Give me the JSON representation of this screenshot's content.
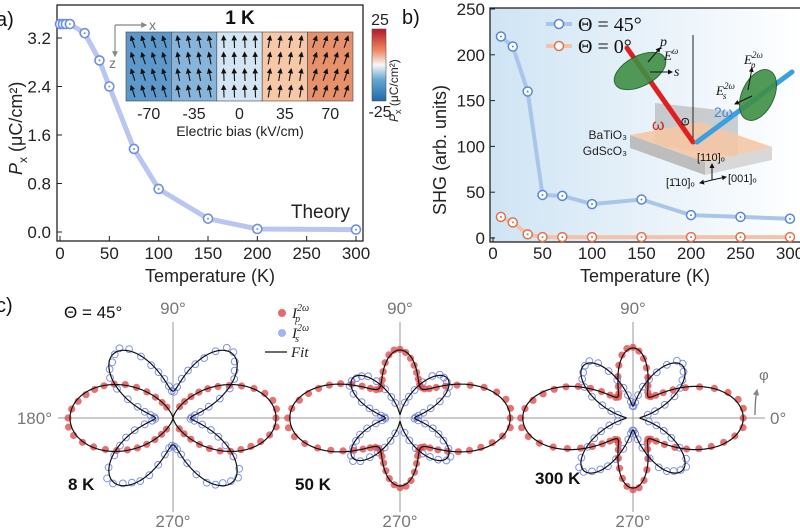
{
  "panel_labels": {
    "a": "a)",
    "b": "b)",
    "c": "c)"
  },
  "colors": {
    "theory": "#6f8fe6",
    "theory_line": "#b9c6f2",
    "theta45": "#5b86d8",
    "theta45_line": "#a9c6e8",
    "theta0": "#e0714e",
    "theta0_line": "#f3c2a8",
    "p_pol": "#e05050",
    "s_pol": "#6a7fe0",
    "fit": "#111111",
    "beam_omega": "#e02020",
    "beam_2omega": "#3aa0e0",
    "polarizer": "#2e7d32"
  },
  "chart_data": [
    {
      "type": "line",
      "panel": "a",
      "xlabel": "Temperature (K)",
      "ylabel": {
        "symbol": "P",
        "sub": "x",
        "unit": " (μC/cm²)"
      },
      "xlim": [
        0,
        300
      ],
      "ylim": [
        0,
        3.5
      ],
      "xticks": [
        "0",
        "50",
        "100",
        "150",
        "200",
        "250",
        "300"
      ],
      "yticks": [
        "0.0",
        "0.8",
        "1.6",
        "2.4",
        "3.2"
      ],
      "annotation": "Theory",
      "x": [
        0,
        3,
        6,
        10,
        25,
        40,
        50,
        75,
        100,
        150,
        200,
        300
      ],
      "y": [
        3.43,
        3.43,
        3.43,
        3.43,
        3.28,
        2.83,
        2.4,
        1.37,
        0.71,
        0.22,
        0.05,
        0.04
      ],
      "inset": {
        "title": "1 K",
        "axis_x": "x",
        "axis_z": "z",
        "xlabel": "Electric bias (kV/cm)",
        "bias": [
          "-70",
          "-35",
          "0",
          "35",
          "70"
        ],
        "bias_values": [
          -70,
          -35,
          0,
          35,
          70
        ],
        "px_values": [
          -15,
          -9,
          -2,
          8,
          16
        ],
        "colorbar": {
          "max": "25",
          "min": "-25",
          "label_symbol": "P",
          "label_sub": "x",
          "label_unit": " (μC/cm²)",
          "range": [
            -25,
            25
          ]
        }
      }
    },
    {
      "type": "line",
      "panel": "b",
      "xlabel": "Temperature (K)",
      "ylabel": "SHG (arb. units)",
      "xlim": [
        0,
        300
      ],
      "ylim": [
        0,
        250
      ],
      "xticks": [
        "0",
        "50",
        "100",
        "150",
        "200",
        "250",
        "300"
      ],
      "yticks": [
        "0",
        "50",
        "100",
        "150",
        "200",
        "250"
      ],
      "legend": "top-left",
      "series": [
        {
          "name": "Θ = 45°",
          "x": [
            8,
            20,
            35,
            50,
            70,
            100,
            150,
            200,
            250,
            300
          ],
          "y": [
            220,
            209,
            160,
            47,
            46,
            37,
            42,
            25,
            23,
            21
          ]
        },
        {
          "name": "Θ = 0°",
          "x": [
            8,
            20,
            35,
            50,
            70,
            100,
            150,
            200,
            250,
            300
          ],
          "y": [
            23,
            17,
            4,
            1,
            1,
            1,
            1,
            1,
            1,
            1
          ]
        }
      ],
      "inset": {
        "p": "p",
        "s": "s",
        "E": "E",
        "omega_sup": "ω",
        "two_omega_sup": "2ω",
        "Ep_sub": "p",
        "Es_sub": "s",
        "beam_2omega": "2ω",
        "beam_omega": "ω",
        "theta": "Θ",
        "layer_top": "BaTiO₃",
        "layer_bottom": "GdScO₃",
        "dir_110": "[110]ₒ",
        "dir_1m10": "[1̄10]ₒ",
        "dir_001": "[001]ₒ"
      }
    },
    {
      "type": "polar",
      "panel": "c",
      "incidence": "Θ = 45°",
      "angle_labels": {
        "top": "90°",
        "bottom": "270°",
        "left": "180°",
        "right": "0°"
      },
      "rotation_symbol": "φ",
      "legend": [
        {
          "symbol": "I",
          "sub": "p",
          "sup": "2ω"
        },
        {
          "symbol": "I",
          "sub": "s",
          "sup": "2ω"
        },
        {
          "symbol": "Fit"
        }
      ],
      "plots": [
        {
          "label": "8 K",
          "p_horizontal": 1.0,
          "p_vertical": 0.0,
          "s_lobes": 0.85,
          "s_lobe_angle_deg": 47
        },
        {
          "label": "50 K",
          "p_horizontal": 1.07,
          "p_vertical": 0.66,
          "s_lobes": 0.6,
          "s_lobe_angle_deg": 40
        },
        {
          "label": "300 K",
          "p_horizontal": 1.07,
          "p_vertical": 0.68,
          "s_lobes": 0.7,
          "s_lobe_angle_deg": 47
        }
      ]
    }
  ]
}
